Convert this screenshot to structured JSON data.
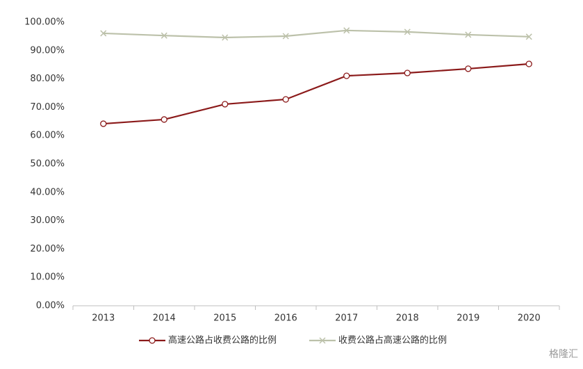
{
  "chart_data": {
    "type": "line",
    "categories": [
      "2013",
      "2014",
      "2015",
      "2016",
      "2017",
      "2018",
      "2019",
      "2020"
    ],
    "series": [
      {
        "name": "高速公路占收费公路的比例",
        "color": "#8b1a1a",
        "marker": "circle",
        "values": [
          64.2,
          65.7,
          71.1,
          72.8,
          81.1,
          82.1,
          83.6,
          85.3
        ]
      },
      {
        "name": "收费公路占高速公路的比例",
        "color": "#bcc1aa",
        "marker": "x",
        "values": [
          96.1,
          95.3,
          94.6,
          95.1,
          97.1,
          96.6,
          95.6,
          94.9
        ]
      }
    ],
    "ylim": [
      0,
      100
    ],
    "yticks": [
      {
        "value": 0,
        "label": "0.00%"
      },
      {
        "value": 10,
        "label": "10.00%"
      },
      {
        "value": 20,
        "label": "20.00%"
      },
      {
        "value": 30,
        "label": "30.00%"
      },
      {
        "value": 40,
        "label": "40.00%"
      },
      {
        "value": 50,
        "label": "50.00%"
      },
      {
        "value": 60,
        "label": "60.00%"
      },
      {
        "value": 70,
        "label": "70.00%"
      },
      {
        "value": 80,
        "label": "80.00%"
      },
      {
        "value": 90,
        "label": "90.00%"
      },
      {
        "value": 100,
        "label": "100.00%"
      }
    ],
    "grid": false,
    "legend": "bottom",
    "watermark": "格隆汇"
  }
}
